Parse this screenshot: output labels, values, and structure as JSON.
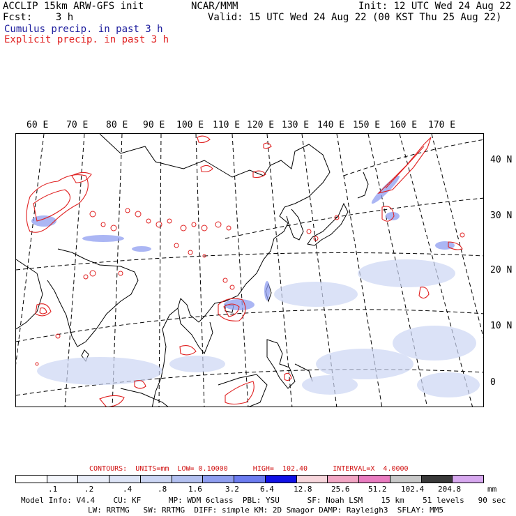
{
  "header": {
    "title_left": "ACCLIP 15km ARW-GFS init",
    "fcst": "Fcst:    3 h",
    "source": "NCAR/MMM",
    "init": "Init: 12 UTC Wed 24 Aug 22",
    "valid": "Valid: 15 UTC Wed 24 Aug 22 (00 KST Thu 25 Aug 22)",
    "legend_cumulus": "Cumulus precip. in past 3 h",
    "legend_explicit": "Explicit precip. in past 3 h"
  },
  "map": {
    "lon_labels": [
      "60 E",
      "70 E",
      "80 E",
      "90 E",
      "100 E",
      "110 E",
      "120 E",
      "130 E",
      "140 E",
      "150 E",
      "160 E",
      "170 E"
    ],
    "lat_labels": [
      "40 N",
      "30 N",
      "20 N",
      "10 N",
      "0"
    ]
  },
  "contours": {
    "text": "CONTOURS:  UNITS=mm  LOW= 0.10000      HIGH=  102.40      INTERVAL=X  4.0000"
  },
  "colorbar": {
    "colors": [
      "#ffffff",
      "#f4f6fb",
      "#e9edf8",
      "#dde4f6",
      "#ccd6f4",
      "#b3c0f0",
      "#8f9ef0",
      "#6c7cf0",
      "#1111e6",
      "#f7d6dc",
      "#f2a6c4",
      "#e97cc0",
      "#c8c8c8",
      "#3a3a3a",
      "#d7a8ef"
    ],
    "ticks": [
      ".1",
      ".2",
      ".4",
      ".8",
      "1.6",
      "3.2",
      "6.4",
      "12.8",
      "25.6",
      "51.2",
      "102.4",
      "204.8"
    ],
    "unit": "mm"
  },
  "model_info": {
    "line1": "Model Info: V4.4    CU: KF      MP: WDM 6class  PBL: YSU      SF: Noah LSM    15 km    51 levels   90 sec",
    "line2": "LW: RRTMG   SW: RRTMG  DIFF: simple KM: 2D Smagor DAMP: Rayleigh3  SFLAY: MM5"
  },
  "colors": {
    "cumulus": "#1a1a9c",
    "explicit": "#e02020",
    "land_outline": "#000000",
    "grid_dashed": "#000000"
  }
}
